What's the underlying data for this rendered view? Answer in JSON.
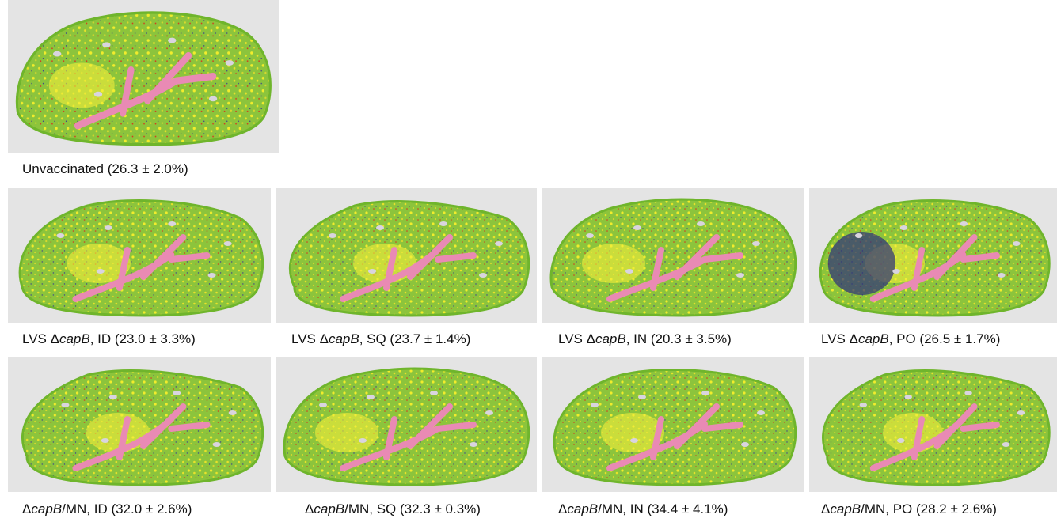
{
  "panels": [
    {
      "prefix": "Unvaccinated (26.3 ± 2.0%)"
    },
    {
      "prefix": "LVS Δ",
      "italic": "capB",
      "suffix": ", ID (23.0 ± 3.3%)"
    },
    {
      "prefix": "LVS Δ",
      "italic": "capB",
      "suffix": ", SQ (23.7 ± 1.4%)"
    },
    {
      "prefix": "LVS Δ",
      "italic": "capB",
      "suffix": ", IN (20.3 ± 3.5%)"
    },
    {
      "prefix": "LVS Δ",
      "italic": "capB",
      "suffix": ", PO (26.5 ± 1.7%)"
    },
    {
      "prefix": "Δ",
      "italic": "capB",
      "suffix": "/MN, ID (32.0 ± 2.6%)"
    },
    {
      "prefix": "Δ",
      "italic": "capB",
      "suffix": "/MN, SQ (32.3 ± 0.3%)"
    },
    {
      "prefix": "Δ",
      "italic": "capB",
      "suffix": "/MN, IN (34.4 ± 4.1%)"
    },
    {
      "prefix": "Δ",
      "italic": "capB",
      "suffix": "/MN, PO (28.2 ± 2.6%)"
    }
  ]
}
